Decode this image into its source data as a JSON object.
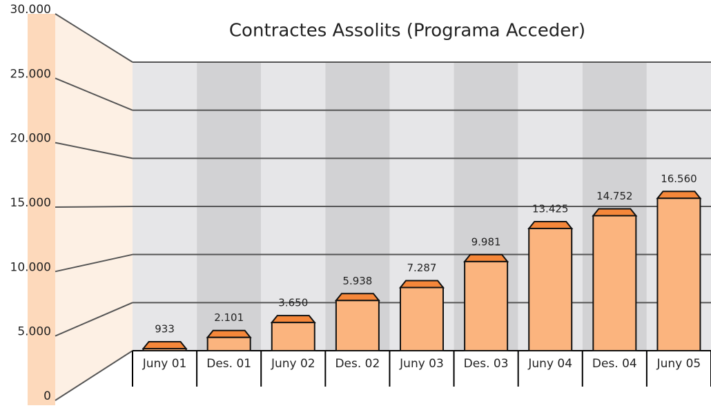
{
  "chart_data": {
    "type": "bar",
    "title": "Contractes Assolits (Programa Acceder)",
    "categories": [
      "Juny  01",
      "Des. 01",
      "Juny  02",
      "Des. 02",
      "Juny  03",
      "Des. 03",
      "Juny  04",
      "Des. 04",
      "Juny  05"
    ],
    "values": [
      933,
      2101,
      3650,
      5938,
      7287,
      9981,
      13425,
      14752,
      16560
    ],
    "value_labels": [
      "933",
      "2.101",
      "3.650",
      "5.938",
      "7.287",
      "9.981",
      "13.425",
      "14.752",
      "16.560"
    ],
    "color": "#fbb47e",
    "ylim": [
      0,
      30000
    ],
    "yticks": [
      0,
      {
        "value": 5000,
        "label": "5.000"
      },
      {
        "value": 10000,
        "label": "10.000"
      },
      {
        "value": 15000,
        "label": "15.000"
      },
      {
        "value": 20000,
        "label": "20.000"
      },
      {
        "value": 25000,
        "label": "25.000"
      },
      {
        "value": 30000,
        "label": "30.000"
      }
    ],
    "grid": true
  }
}
